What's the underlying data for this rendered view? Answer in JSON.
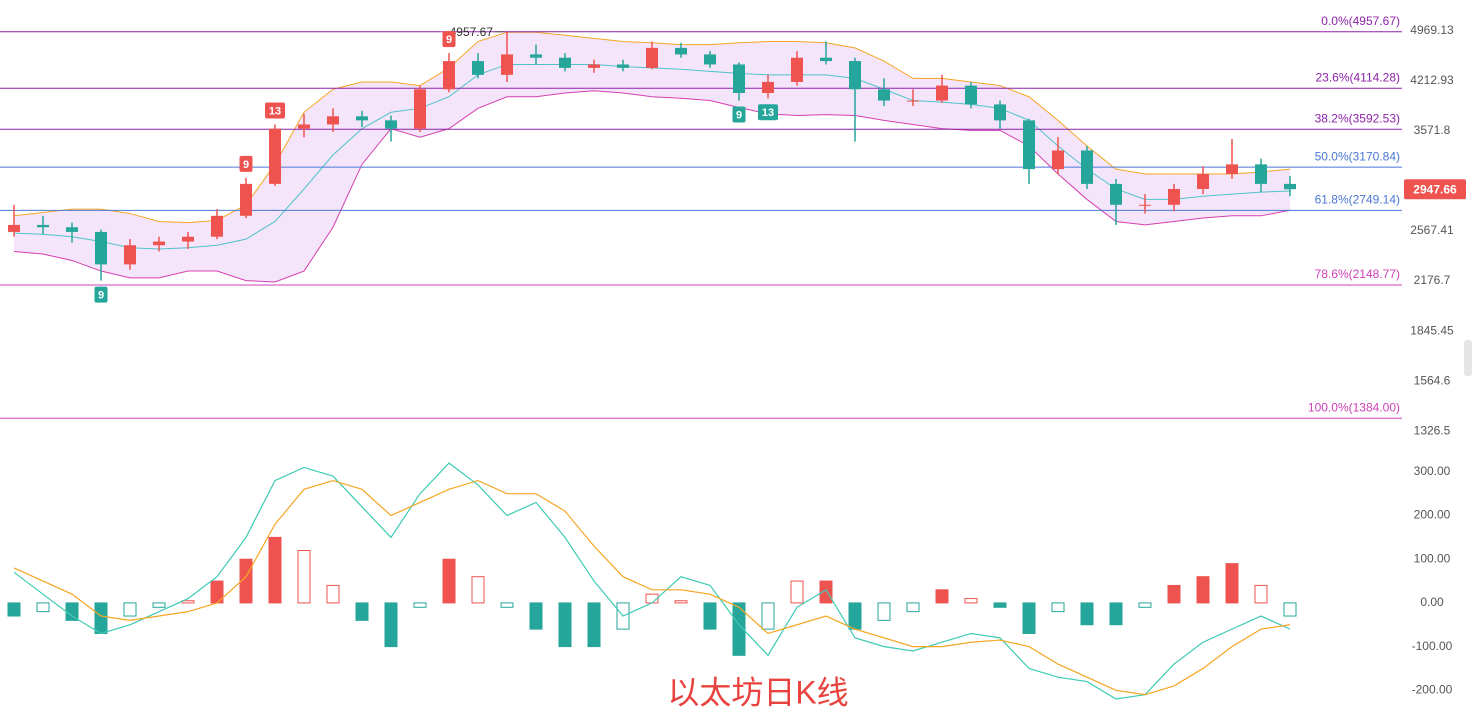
{
  "chart_data": {
    "type": "candlestick",
    "ylim": [
      1267,
      5505
    ],
    "log_scale": true,
    "yticks": [
      4969.13,
      4212.93,
      3571.8,
      2567.41,
      2176.7,
      1845.45,
      1564.6,
      1326.5
    ],
    "up_color": "#ef5350",
    "down_color": "#26a69a",
    "candles": [
      [
        2560,
        2800,
        2520,
        2620
      ],
      [
        2620,
        2700,
        2540,
        2600
      ],
      [
        2600,
        2640,
        2470,
        2560
      ],
      [
        2560,
        2580,
        2180,
        2300
      ],
      [
        2300,
        2500,
        2260,
        2450
      ],
      [
        2450,
        2520,
        2400,
        2480
      ],
      [
        2480,
        2560,
        2420,
        2520
      ],
      [
        2520,
        2760,
        2500,
        2700
      ],
      [
        2700,
        3060,
        2680,
        3000
      ],
      [
        3000,
        3650,
        2980,
        3600
      ],
      [
        3600,
        3780,
        3500,
        3650
      ],
      [
        3650,
        3850,
        3560,
        3750
      ],
      [
        3750,
        3820,
        3620,
        3700
      ],
      [
        3700,
        3760,
        3450,
        3600
      ],
      [
        3600,
        4150,
        3560,
        4100
      ],
      [
        4100,
        4620,
        4060,
        4500
      ],
      [
        4500,
        4620,
        4250,
        4300
      ],
      [
        4300,
        4957.67,
        4200,
        4600
      ],
      [
        4600,
        4750,
        4450,
        4550
      ],
      [
        4550,
        4620,
        4350,
        4400
      ],
      [
        4400,
        4520,
        4330,
        4450
      ],
      [
        4450,
        4520,
        4350,
        4400
      ],
      [
        4400,
        4800,
        4380,
        4700
      ],
      [
        4700,
        4780,
        4550,
        4600
      ],
      [
        4600,
        4650,
        4400,
        4450
      ],
      [
        4450,
        4480,
        3950,
        4050
      ],
      [
        4050,
        4300,
        3980,
        4200
      ],
      [
        4200,
        4650,
        4150,
        4550
      ],
      [
        4550,
        4800,
        4450,
        4500
      ],
      [
        4500,
        4550,
        3450,
        4100
      ],
      [
        4100,
        4250,
        3880,
        3950
      ],
      [
        3950,
        4100,
        3880,
        3950
      ],
      [
        3950,
        4300,
        3920,
        4150
      ],
      [
        4150,
        4200,
        3850,
        3900
      ],
      [
        3900,
        3950,
        3600,
        3700
      ],
      [
        3700,
        3720,
        3000,
        3150
      ],
      [
        3150,
        3500,
        3100,
        3350
      ],
      [
        3350,
        3400,
        2950,
        3000
      ],
      [
        3000,
        3050,
        2620,
        2800
      ],
      [
        2800,
        2900,
        2720,
        2800
      ],
      [
        2800,
        3000,
        2740,
        2950
      ],
      [
        2950,
        3180,
        2900,
        3100
      ],
      [
        3100,
        3480,
        3050,
        3200
      ],
      [
        3200,
        3260,
        2920,
        3000
      ],
      [
        3000,
        3080,
        2880,
        2947.66
      ]
    ],
    "max_marker": 17,
    "bollinger": {
      "upper": [
        2700,
        2730,
        2760,
        2760,
        2720,
        2650,
        2640,
        2660,
        2800,
        3200,
        3800,
        4100,
        4200,
        4200,
        4150,
        4400,
        4800,
        4950,
        4950,
        4900,
        4850,
        4800,
        4780,
        4750,
        4750,
        4780,
        4800,
        4800,
        4780,
        4700,
        4500,
        4250,
        4250,
        4200,
        4150,
        4000,
        3700,
        3400,
        3150,
        3100,
        3100,
        3100,
        3100,
        3120,
        3150
      ],
      "middle": [
        2550,
        2540,
        2520,
        2480,
        2430,
        2420,
        2430,
        2450,
        2500,
        2650,
        2950,
        3300,
        3600,
        3800,
        3850,
        4000,
        4300,
        4450,
        4450,
        4450,
        4450,
        4420,
        4400,
        4380,
        4350,
        4320,
        4300,
        4300,
        4300,
        4250,
        4100,
        3950,
        3930,
        3900,
        3850,
        3700,
        3400,
        3150,
        2950,
        2850,
        2850,
        2880,
        2900,
        2920,
        2930
      ],
      "lower": [
        2400,
        2380,
        2330,
        2250,
        2200,
        2200,
        2250,
        2250,
        2180,
        2170,
        2250,
        2600,
        3200,
        3600,
        3500,
        3600,
        3850,
        4000,
        4000,
        4050,
        4080,
        4050,
        4000,
        3980,
        3950,
        3860,
        3780,
        3760,
        3770,
        3760,
        3700,
        3650,
        3600,
        3580,
        3580,
        3400,
        3100,
        2850,
        2650,
        2620,
        2650,
        2680,
        2700,
        2700,
        2750
      ],
      "upper_color": "#f5a623",
      "middle_color": "#4fc3c9",
      "lower_color": "#d63fae",
      "fill": "#f3e0fa"
    },
    "fib_levels": [
      {
        "value": 4957.67,
        "label": "0.0%(4957.67)",
        "color": "#8e24aa"
      },
      {
        "value": 4114.28,
        "label": "23.6%(4114.28)",
        "color": "#8e24aa"
      },
      {
        "value": 3592.53,
        "label": "38.2%(3592.53)",
        "color": "#8e24aa"
      },
      {
        "value": 3170.84,
        "label": "50.0%(3170.84)",
        "color": "#4a78d4"
      },
      {
        "value": 2749.14,
        "label": "61.8%(2749.14)",
        "color": "#4a78d4"
      },
      {
        "value": 2148.77,
        "label": "78.6%(2148.77)",
        "color": "#d040b8"
      },
      {
        "value": 1384.0,
        "label": "100.0%(1384.00)",
        "color": "#d040b8"
      }
    ],
    "td_counts": [
      {
        "candle": 3,
        "count": 9,
        "side": "below"
      },
      {
        "candle": 8,
        "count": 9,
        "side": "above"
      },
      {
        "candle": 9,
        "count": 13,
        "side": "above"
      },
      {
        "candle": 15,
        "count": 9,
        "side": "above"
      },
      {
        "candle": 25,
        "count": 9,
        "side": "below"
      },
      {
        "candle": 26,
        "count": 13,
        "side": "below"
      }
    ],
    "macd": {
      "ylim": [
        -268,
        350
      ],
      "yticks": [
        {
          "value": 300,
          "label": "300.00"
        },
        {
          "value": 200,
          "label": "200.00"
        },
        {
          "value": 100,
          "label": "100.00"
        },
        {
          "value": 0,
          "label": "0.00"
        },
        {
          "value": -100,
          "label": "-100.00"
        },
        {
          "value": -200,
          "label": "-200.00"
        }
      ],
      "histogram": [
        -30,
        -20,
        -40,
        -70,
        -30,
        -10,
        5,
        50,
        100,
        150,
        120,
        40,
        -40,
        -100,
        -10,
        100,
        60,
        -10,
        -60,
        -100,
        -100,
        -60,
        20,
        5,
        -60,
        -120,
        -60,
        50,
        50,
        -60,
        -40,
        -20,
        30,
        10,
        -10,
        -70,
        -20,
        -50,
        -50,
        -10,
        40,
        60,
        90,
        40,
        -30
      ],
      "dif": [
        70,
        20,
        -30,
        -70,
        -50,
        -20,
        10,
        60,
        150,
        280,
        310,
        290,
        220,
        150,
        250,
        320,
        270,
        200,
        230,
        150,
        50,
        -30,
        0,
        60,
        40,
        -50,
        -120,
        -10,
        30,
        -80,
        -100,
        -110,
        -90,
        -70,
        -80,
        -150,
        -170,
        -180,
        -220,
        -210,
        -140,
        -90,
        -60,
        -30,
        -60
      ],
      "dea": [
        80,
        50,
        20,
        -30,
        -40,
        -30,
        -20,
        0,
        60,
        180,
        260,
        280,
        260,
        200,
        230,
        260,
        280,
        250,
        250,
        210,
        130,
        60,
        30,
        30,
        20,
        -10,
        -70,
        -50,
        -30,
        -60,
        -80,
        -100,
        -100,
        -90,
        -85,
        -100,
        -140,
        -170,
        -200,
        -210,
        -190,
        -150,
        -100,
        -60,
        -50
      ],
      "dif_color": "#3ecbb5",
      "dea_color": "#f5a623"
    },
    "watermark": "以太坊日K线"
  }
}
